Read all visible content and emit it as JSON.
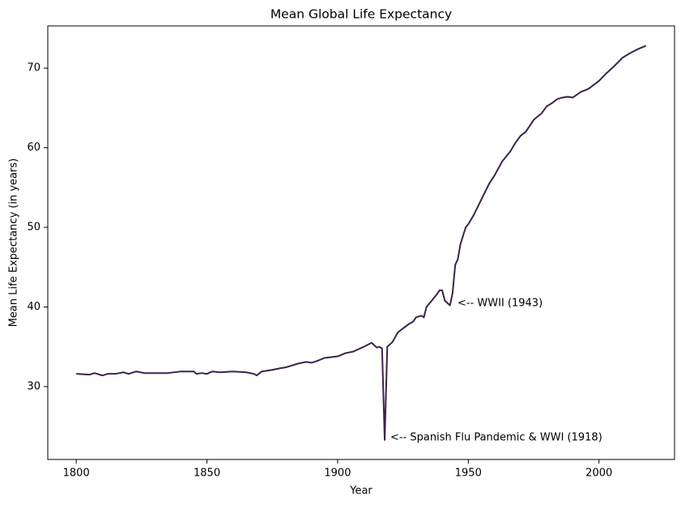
{
  "chart_data": {
    "type": "line",
    "title": "Mean Global Life Expectancy",
    "x_label": "Year",
    "y_label": "Mean Life Expectancy (in years)",
    "color": "#3a2449",
    "x": [
      1800,
      1805,
      1807,
      1810,
      1812,
      1815,
      1818,
      1820,
      1823,
      1826,
      1830,
      1835,
      1840,
      1845,
      1846,
      1848,
      1850,
      1852,
      1855,
      1860,
      1865,
      1868,
      1869,
      1871,
      1875,
      1878,
      1880,
      1885,
      1888,
      1890,
      1892,
      1895,
      1900,
      1903,
      1906,
      1910,
      1913,
      1915,
      1916,
      1917,
      1918,
      1919,
      1921,
      1923,
      1925,
      1927,
      1929,
      1930,
      1932,
      1933,
      1934,
      1936,
      1938,
      1939,
      1940,
      1941,
      1943,
      1944,
      1945,
      1946,
      1947,
      1949,
      1950,
      1952,
      1955,
      1958,
      1960,
      1963,
      1966,
      1968,
      1970,
      1972,
      1975,
      1978,
      1980,
      1982,
      1984,
      1986,
      1988,
      1990,
      1993,
      1996,
      2000,
      2003,
      2006,
      2009,
      2012,
      2015,
      2018
    ],
    "values": [
      31.6,
      31.5,
      31.7,
      31.4,
      31.6,
      31.6,
      31.8,
      31.6,
      31.9,
      31.7,
      31.7,
      31.7,
      31.9,
      31.9,
      31.6,
      31.7,
      31.6,
      31.9,
      31.8,
      31.9,
      31.8,
      31.6,
      31.4,
      31.9,
      32.1,
      32.3,
      32.4,
      32.9,
      33.1,
      33.0,
      33.2,
      33.6,
      33.8,
      34.2,
      34.4,
      35.0,
      35.5,
      34.9,
      35.0,
      34.8,
      23.3,
      35.0,
      35.6,
      36.8,
      37.3,
      37.8,
      38.2,
      38.7,
      38.9,
      38.7,
      40.0,
      40.8,
      41.6,
      42.1,
      42.1,
      40.8,
      40.2,
      41.8,
      45.3,
      46.0,
      47.9,
      50.0,
      50.4,
      51.5,
      53.5,
      55.5,
      56.5,
      58.3,
      59.5,
      60.6,
      61.5,
      62.0,
      63.5,
      64.3,
      65.2,
      65.6,
      66.1,
      66.3,
      66.4,
      66.3,
      67.0,
      67.4,
      68.4,
      69.4,
      70.3,
      71.3,
      71.9,
      72.4,
      72.8
    ],
    "annotations": [
      "<-- WWII (1943)",
      "<-- Spanish Flu Pandemic & WWI (1918)"
    ],
    "xlim": [
      1789.1,
      2028.9
    ],
    "xticks": [
      1800,
      1850,
      1900,
      1950,
      2000
    ],
    "ylim": [
      20.85,
      75.3
    ],
    "yticks": [
      30,
      40,
      50,
      60,
      70
    ]
  }
}
